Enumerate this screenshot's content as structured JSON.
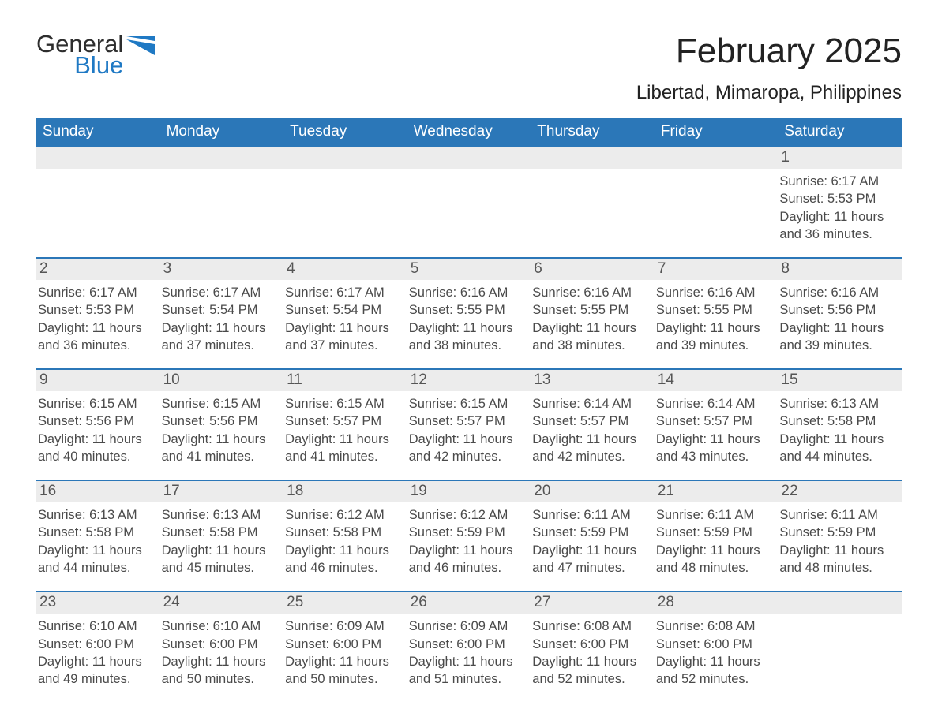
{
  "logo": {
    "word": "General",
    "word2": "Blue"
  },
  "header": {
    "month": "February 2025",
    "location": "Libertad, Mimaropa, Philippines"
  },
  "dow": [
    "Sunday",
    "Monday",
    "Tuesday",
    "Wednesday",
    "Thursday",
    "Friday",
    "Saturday"
  ],
  "colors": {
    "accent": "#2b77b8",
    "logo_blue": "#1f79c4",
    "header_row": "#ececec",
    "text": "#333333",
    "background": "#ffffff"
  },
  "weeks": [
    [
      {
        "blank": true
      },
      {
        "blank": true
      },
      {
        "blank": true
      },
      {
        "blank": true
      },
      {
        "blank": true
      },
      {
        "blank": true
      },
      {
        "day": "1",
        "sunrise": "Sunrise: 6:17 AM",
        "sunset": "Sunset: 5:53 PM",
        "daylight1": "Daylight: 11 hours",
        "daylight2": "and 36 minutes."
      }
    ],
    [
      {
        "day": "2",
        "sunrise": "Sunrise: 6:17 AM",
        "sunset": "Sunset: 5:53 PM",
        "daylight1": "Daylight: 11 hours",
        "daylight2": "and 36 minutes."
      },
      {
        "day": "3",
        "sunrise": "Sunrise: 6:17 AM",
        "sunset": "Sunset: 5:54 PM",
        "daylight1": "Daylight: 11 hours",
        "daylight2": "and 37 minutes."
      },
      {
        "day": "4",
        "sunrise": "Sunrise: 6:17 AM",
        "sunset": "Sunset: 5:54 PM",
        "daylight1": "Daylight: 11 hours",
        "daylight2": "and 37 minutes."
      },
      {
        "day": "5",
        "sunrise": "Sunrise: 6:16 AM",
        "sunset": "Sunset: 5:55 PM",
        "daylight1": "Daylight: 11 hours",
        "daylight2": "and 38 minutes."
      },
      {
        "day": "6",
        "sunrise": "Sunrise: 6:16 AM",
        "sunset": "Sunset: 5:55 PM",
        "daylight1": "Daylight: 11 hours",
        "daylight2": "and 38 minutes."
      },
      {
        "day": "7",
        "sunrise": "Sunrise: 6:16 AM",
        "sunset": "Sunset: 5:55 PM",
        "daylight1": "Daylight: 11 hours",
        "daylight2": "and 39 minutes."
      },
      {
        "day": "8",
        "sunrise": "Sunrise: 6:16 AM",
        "sunset": "Sunset: 5:56 PM",
        "daylight1": "Daylight: 11 hours",
        "daylight2": "and 39 minutes."
      }
    ],
    [
      {
        "day": "9",
        "sunrise": "Sunrise: 6:15 AM",
        "sunset": "Sunset: 5:56 PM",
        "daylight1": "Daylight: 11 hours",
        "daylight2": "and 40 minutes."
      },
      {
        "day": "10",
        "sunrise": "Sunrise: 6:15 AM",
        "sunset": "Sunset: 5:56 PM",
        "daylight1": "Daylight: 11 hours",
        "daylight2": "and 41 minutes."
      },
      {
        "day": "11",
        "sunrise": "Sunrise: 6:15 AM",
        "sunset": "Sunset: 5:57 PM",
        "daylight1": "Daylight: 11 hours",
        "daylight2": "and 41 minutes."
      },
      {
        "day": "12",
        "sunrise": "Sunrise: 6:15 AM",
        "sunset": "Sunset: 5:57 PM",
        "daylight1": "Daylight: 11 hours",
        "daylight2": "and 42 minutes."
      },
      {
        "day": "13",
        "sunrise": "Sunrise: 6:14 AM",
        "sunset": "Sunset: 5:57 PM",
        "daylight1": "Daylight: 11 hours",
        "daylight2": "and 42 minutes."
      },
      {
        "day": "14",
        "sunrise": "Sunrise: 6:14 AM",
        "sunset": "Sunset: 5:57 PM",
        "daylight1": "Daylight: 11 hours",
        "daylight2": "and 43 minutes."
      },
      {
        "day": "15",
        "sunrise": "Sunrise: 6:13 AM",
        "sunset": "Sunset: 5:58 PM",
        "daylight1": "Daylight: 11 hours",
        "daylight2": "and 44 minutes."
      }
    ],
    [
      {
        "day": "16",
        "sunrise": "Sunrise: 6:13 AM",
        "sunset": "Sunset: 5:58 PM",
        "daylight1": "Daylight: 11 hours",
        "daylight2": "and 44 minutes."
      },
      {
        "day": "17",
        "sunrise": "Sunrise: 6:13 AM",
        "sunset": "Sunset: 5:58 PM",
        "daylight1": "Daylight: 11 hours",
        "daylight2": "and 45 minutes."
      },
      {
        "day": "18",
        "sunrise": "Sunrise: 6:12 AM",
        "sunset": "Sunset: 5:58 PM",
        "daylight1": "Daylight: 11 hours",
        "daylight2": "and 46 minutes."
      },
      {
        "day": "19",
        "sunrise": "Sunrise: 6:12 AM",
        "sunset": "Sunset: 5:59 PM",
        "daylight1": "Daylight: 11 hours",
        "daylight2": "and 46 minutes."
      },
      {
        "day": "20",
        "sunrise": "Sunrise: 6:11 AM",
        "sunset": "Sunset: 5:59 PM",
        "daylight1": "Daylight: 11 hours",
        "daylight2": "and 47 minutes."
      },
      {
        "day": "21",
        "sunrise": "Sunrise: 6:11 AM",
        "sunset": "Sunset: 5:59 PM",
        "daylight1": "Daylight: 11 hours",
        "daylight2": "and 48 minutes."
      },
      {
        "day": "22",
        "sunrise": "Sunrise: 6:11 AM",
        "sunset": "Sunset: 5:59 PM",
        "daylight1": "Daylight: 11 hours",
        "daylight2": "and 48 minutes."
      }
    ],
    [
      {
        "day": "23",
        "sunrise": "Sunrise: 6:10 AM",
        "sunset": "Sunset: 6:00 PM",
        "daylight1": "Daylight: 11 hours",
        "daylight2": "and 49 minutes."
      },
      {
        "day": "24",
        "sunrise": "Sunrise: 6:10 AM",
        "sunset": "Sunset: 6:00 PM",
        "daylight1": "Daylight: 11 hours",
        "daylight2": "and 50 minutes."
      },
      {
        "day": "25",
        "sunrise": "Sunrise: 6:09 AM",
        "sunset": "Sunset: 6:00 PM",
        "daylight1": "Daylight: 11 hours",
        "daylight2": "and 50 minutes."
      },
      {
        "day": "26",
        "sunrise": "Sunrise: 6:09 AM",
        "sunset": "Sunset: 6:00 PM",
        "daylight1": "Daylight: 11 hours",
        "daylight2": "and 51 minutes."
      },
      {
        "day": "27",
        "sunrise": "Sunrise: 6:08 AM",
        "sunset": "Sunset: 6:00 PM",
        "daylight1": "Daylight: 11 hours",
        "daylight2": "and 52 minutes."
      },
      {
        "day": "28",
        "sunrise": "Sunrise: 6:08 AM",
        "sunset": "Sunset: 6:00 PM",
        "daylight1": "Daylight: 11 hours",
        "daylight2": "and 52 minutes."
      },
      {
        "blank": true
      }
    ]
  ]
}
